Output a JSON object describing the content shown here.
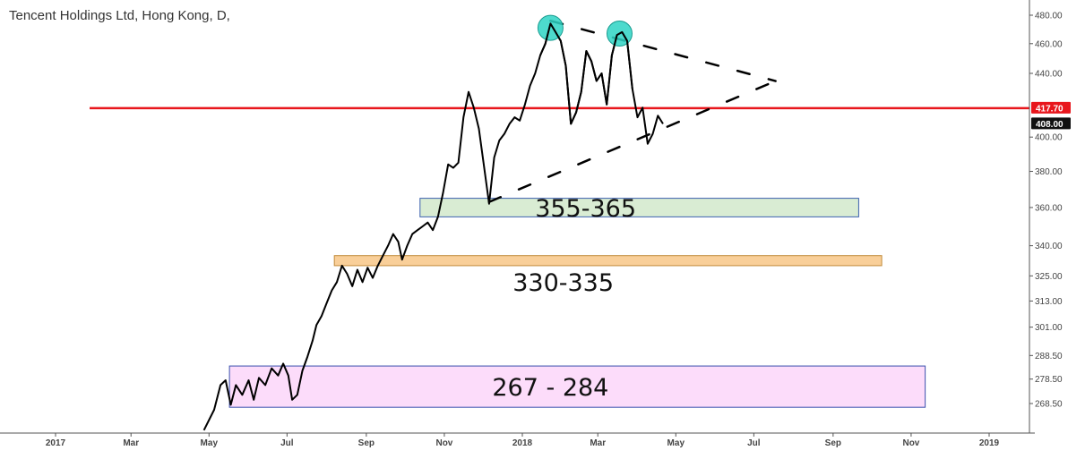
{
  "chart_data": {
    "type": "line",
    "title": "Tencent Holdings Ltd, Hong Kong, D,",
    "xlabel": "",
    "ylabel": "",
    "x_ticks": [
      "2017",
      "Mar",
      "May",
      "Jul",
      "Sep",
      "Nov",
      "2018",
      "Mar",
      "May",
      "Jul",
      "Sep",
      "Nov",
      "2019"
    ],
    "y_ticks": [
      "268.50",
      "278.50",
      "288.50",
      "301.00",
      "313.00",
      "325.00",
      "340.00",
      "360.00",
      "380.00",
      "400.00",
      "408.00",
      "417.70",
      "440.00",
      "460.00",
      "480.00"
    ],
    "yscale": "log",
    "grid": false,
    "series": [
      {
        "color": "#000000",
        "points": [
          [
            "2017-04-27",
            258
          ],
          [
            "2017-05-05",
            266
          ],
          [
            "2017-05-10",
            276
          ],
          [
            "2017-05-14",
            278
          ],
          [
            "2017-05-18",
            268
          ],
          [
            "2017-05-22",
            276
          ],
          [
            "2017-05-27",
            272
          ],
          [
            "2017-06-01",
            278
          ],
          [
            "2017-06-05",
            270
          ],
          [
            "2017-06-09",
            279
          ],
          [
            "2017-06-14",
            276
          ],
          [
            "2017-06-19",
            283
          ],
          [
            "2017-06-24",
            280
          ],
          [
            "2017-06-28",
            285
          ],
          [
            "2017-07-02",
            280
          ],
          [
            "2017-07-05",
            270
          ],
          [
            "2017-07-09",
            272
          ],
          [
            "2017-07-13",
            282
          ],
          [
            "2017-07-17",
            288
          ],
          [
            "2017-07-21",
            295
          ],
          [
            "2017-07-24",
            302
          ],
          [
            "2017-07-28",
            306
          ],
          [
            "2017-08-01",
            312
          ],
          [
            "2017-08-05",
            318
          ],
          [
            "2017-08-09",
            322
          ],
          [
            "2017-08-13",
            330
          ],
          [
            "2017-08-17",
            326
          ],
          [
            "2017-08-21",
            320
          ],
          [
            "2017-08-25",
            328
          ],
          [
            "2017-08-29",
            322
          ],
          [
            "2017-09-02",
            329
          ],
          [
            "2017-09-06",
            324
          ],
          [
            "2017-09-10",
            330
          ],
          [
            "2017-09-14",
            335
          ],
          [
            "2017-09-18",
            340
          ],
          [
            "2017-09-22",
            346
          ],
          [
            "2017-09-26",
            342
          ],
          [
            "2017-09-29",
            333
          ],
          [
            "2017-10-03",
            340
          ],
          [
            "2017-10-07",
            346
          ],
          [
            "2017-10-11",
            348
          ],
          [
            "2017-10-15",
            350
          ],
          [
            "2017-10-19",
            352
          ],
          [
            "2017-10-23",
            348
          ],
          [
            "2017-10-27",
            355
          ],
          [
            "2017-10-31",
            368
          ],
          [
            "2017-11-04",
            384
          ],
          [
            "2017-11-08",
            382
          ],
          [
            "2017-11-12",
            385
          ],
          [
            "2017-11-16",
            412
          ],
          [
            "2017-11-20",
            428
          ],
          [
            "2017-11-24",
            418
          ],
          [
            "2017-11-28",
            405
          ],
          [
            "2017-12-02",
            383
          ],
          [
            "2017-12-06",
            362
          ],
          [
            "2017-12-10",
            388
          ],
          [
            "2017-12-14",
            398
          ],
          [
            "2017-12-18",
            402
          ],
          [
            "2017-12-22",
            408
          ],
          [
            "2017-12-26",
            412
          ],
          [
            "2017-12-30",
            410
          ],
          [
            "2018-01-03",
            420
          ],
          [
            "2018-01-07",
            432
          ],
          [
            "2018-01-11",
            440
          ],
          [
            "2018-01-15",
            452
          ],
          [
            "2018-01-19",
            460
          ],
          [
            "2018-01-23",
            474
          ],
          [
            "2018-01-27",
            468
          ],
          [
            "2018-01-31",
            462
          ],
          [
            "2018-02-04",
            445
          ],
          [
            "2018-02-08",
            408
          ],
          [
            "2018-02-12",
            415
          ],
          [
            "2018-02-16",
            428
          ],
          [
            "2018-02-20",
            455
          ],
          [
            "2018-02-24",
            448
          ],
          [
            "2018-02-28",
            435
          ],
          [
            "2018-03-04",
            440
          ],
          [
            "2018-03-08",
            420
          ],
          [
            "2018-03-12",
            452
          ],
          [
            "2018-03-16",
            466
          ],
          [
            "2018-03-20",
            468
          ],
          [
            "2018-03-24",
            462
          ],
          [
            "2018-03-28",
            430
          ],
          [
            "2018-04-01",
            412
          ],
          [
            "2018-04-05",
            418
          ],
          [
            "2018-04-09",
            396
          ],
          [
            "2018-04-13",
            402
          ],
          [
            "2018-04-17",
            413
          ],
          [
            "2018-04-21",
            408
          ]
        ]
      }
    ],
    "zones": [
      {
        "label": "355-365",
        "low": 355,
        "high": 365,
        "from": "2017-10-13",
        "to": "2018-09-21",
        "fill": "#d9ecd3",
        "stroke": "#3a5fad"
      },
      {
        "label": "330-335",
        "low": 330,
        "high": 335,
        "from": "2017-08-07",
        "to": "2018-10-09",
        "fill": "#f9cf99",
        "stroke": "#c18a3a"
      },
      {
        "label": "267 - 284",
        "low": 267,
        "high": 284,
        "from": "2017-05-17",
        "to": "2018-11-12",
        "fill": "#fcdcfa",
        "stroke": "#3a4fad"
      }
    ],
    "horizontal_line": {
      "value": 417.7,
      "color": "#e8161c"
    },
    "trendlines": [
      {
        "from": [
          "2018-01-23",
          476
        ],
        "to": [
          "2018-07-18",
          435
        ],
        "style": "dashed"
      },
      {
        "from": [
          "2017-12-06",
          363
        ],
        "to": [
          "2018-07-18",
          435
        ],
        "style": "dashed"
      }
    ],
    "markers": [
      {
        "date": "2018-01-23",
        "value": 471,
        "color": "#2ed3c4"
      },
      {
        "date": "2018-03-18",
        "value": 467,
        "color": "#2ed3c4"
      }
    ],
    "price_tags": [
      {
        "label": "417.70",
        "value": 417.7,
        "color": "#e8161c"
      },
      {
        "label": "408.00",
        "value": 408,
        "color": "#111111"
      }
    ]
  }
}
